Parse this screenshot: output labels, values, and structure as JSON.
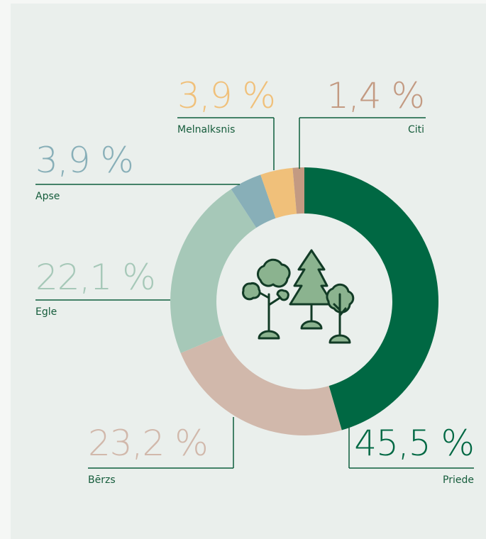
{
  "chart_data": {
    "type": "donut",
    "categories": [
      "Priede",
      "Bērzs",
      "Egle",
      "Apse",
      "Melnalksnis",
      "Citi"
    ],
    "values": [
      45.5,
      23.2,
      22.1,
      3.9,
      3.9,
      1.4
    ],
    "value_labels": [
      "45,5 %",
      "23,2 %",
      "22,1 %",
      "3,9 %",
      "3,9 %",
      "1,4 %"
    ],
    "colors": [
      "#006843",
      "#d1b8ab",
      "#a6c8b8",
      "#88afb8",
      "#f0c07a",
      "#c39a82"
    ]
  }
}
